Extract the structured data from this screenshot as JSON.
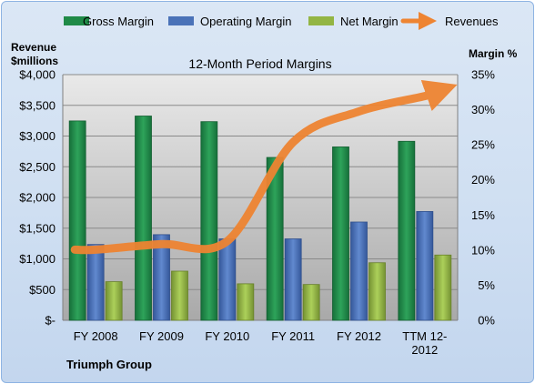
{
  "legend": {
    "gross": "Gross Margin",
    "operating": "Operating Margin",
    "net": "Net Margin",
    "revenues": "Revenues"
  },
  "left_axis_title": [
    "Revenue",
    "$millions"
  ],
  "right_axis_title": "Margin %",
  "company": "Triumph Group",
  "colors": {
    "gross": "#1f8a47",
    "operating": "#4a72b8",
    "net": "#93b544",
    "revenues": "#ee8432"
  },
  "chart_data": {
    "type": "bar",
    "title": "12-Month Period Margins",
    "categories": [
      [
        "FY 2008"
      ],
      [
        "FY 2009"
      ],
      [
        "FY 2010"
      ],
      [
        "FY 2011"
      ],
      [
        "FY 2012"
      ],
      [
        "TTM 12-",
        "2012"
      ]
    ],
    "left_axis": {
      "label": "Revenue $millions",
      "ylim": [
        0,
        4000
      ],
      "ticks": [
        0,
        500,
        1000,
        1500,
        2000,
        2500,
        3000,
        3500,
        4000
      ],
      "tick_labels": [
        "$-",
        "$500",
        "$1,000",
        "$1,500",
        "$2,000",
        "$2,500",
        "$3,000",
        "$3,500",
        "$4,000"
      ]
    },
    "right_axis": {
      "label": "Margin %",
      "ylim": [
        0,
        35
      ],
      "ticks": [
        0,
        5,
        10,
        15,
        20,
        25,
        30,
        35
      ],
      "tick_labels": [
        "0%",
        "5%",
        "10%",
        "15%",
        "20%",
        "25%",
        "30%",
        "35%"
      ]
    },
    "series": [
      {
        "name": "Gross Margin",
        "axis": "right",
        "kind": "bar",
        "values": [
          28.4,
          29.1,
          28.3,
          23.2,
          24.7,
          25.5
        ]
      },
      {
        "name": "Operating Margin",
        "axis": "right",
        "kind": "bar",
        "values": [
          10.8,
          12.2,
          11.6,
          11.6,
          14.0,
          15.5
        ]
      },
      {
        "name": "Net Margin",
        "axis": "right",
        "kind": "bar",
        "values": [
          5.5,
          7.0,
          5.2,
          5.1,
          8.2,
          9.3
        ]
      },
      {
        "name": "Revenues",
        "axis": "left",
        "kind": "line",
        "values": [
          1150,
          1240,
          1290,
          2900,
          3400,
          3650
        ]
      }
    ],
    "grid": true,
    "legend_position": "top"
  }
}
